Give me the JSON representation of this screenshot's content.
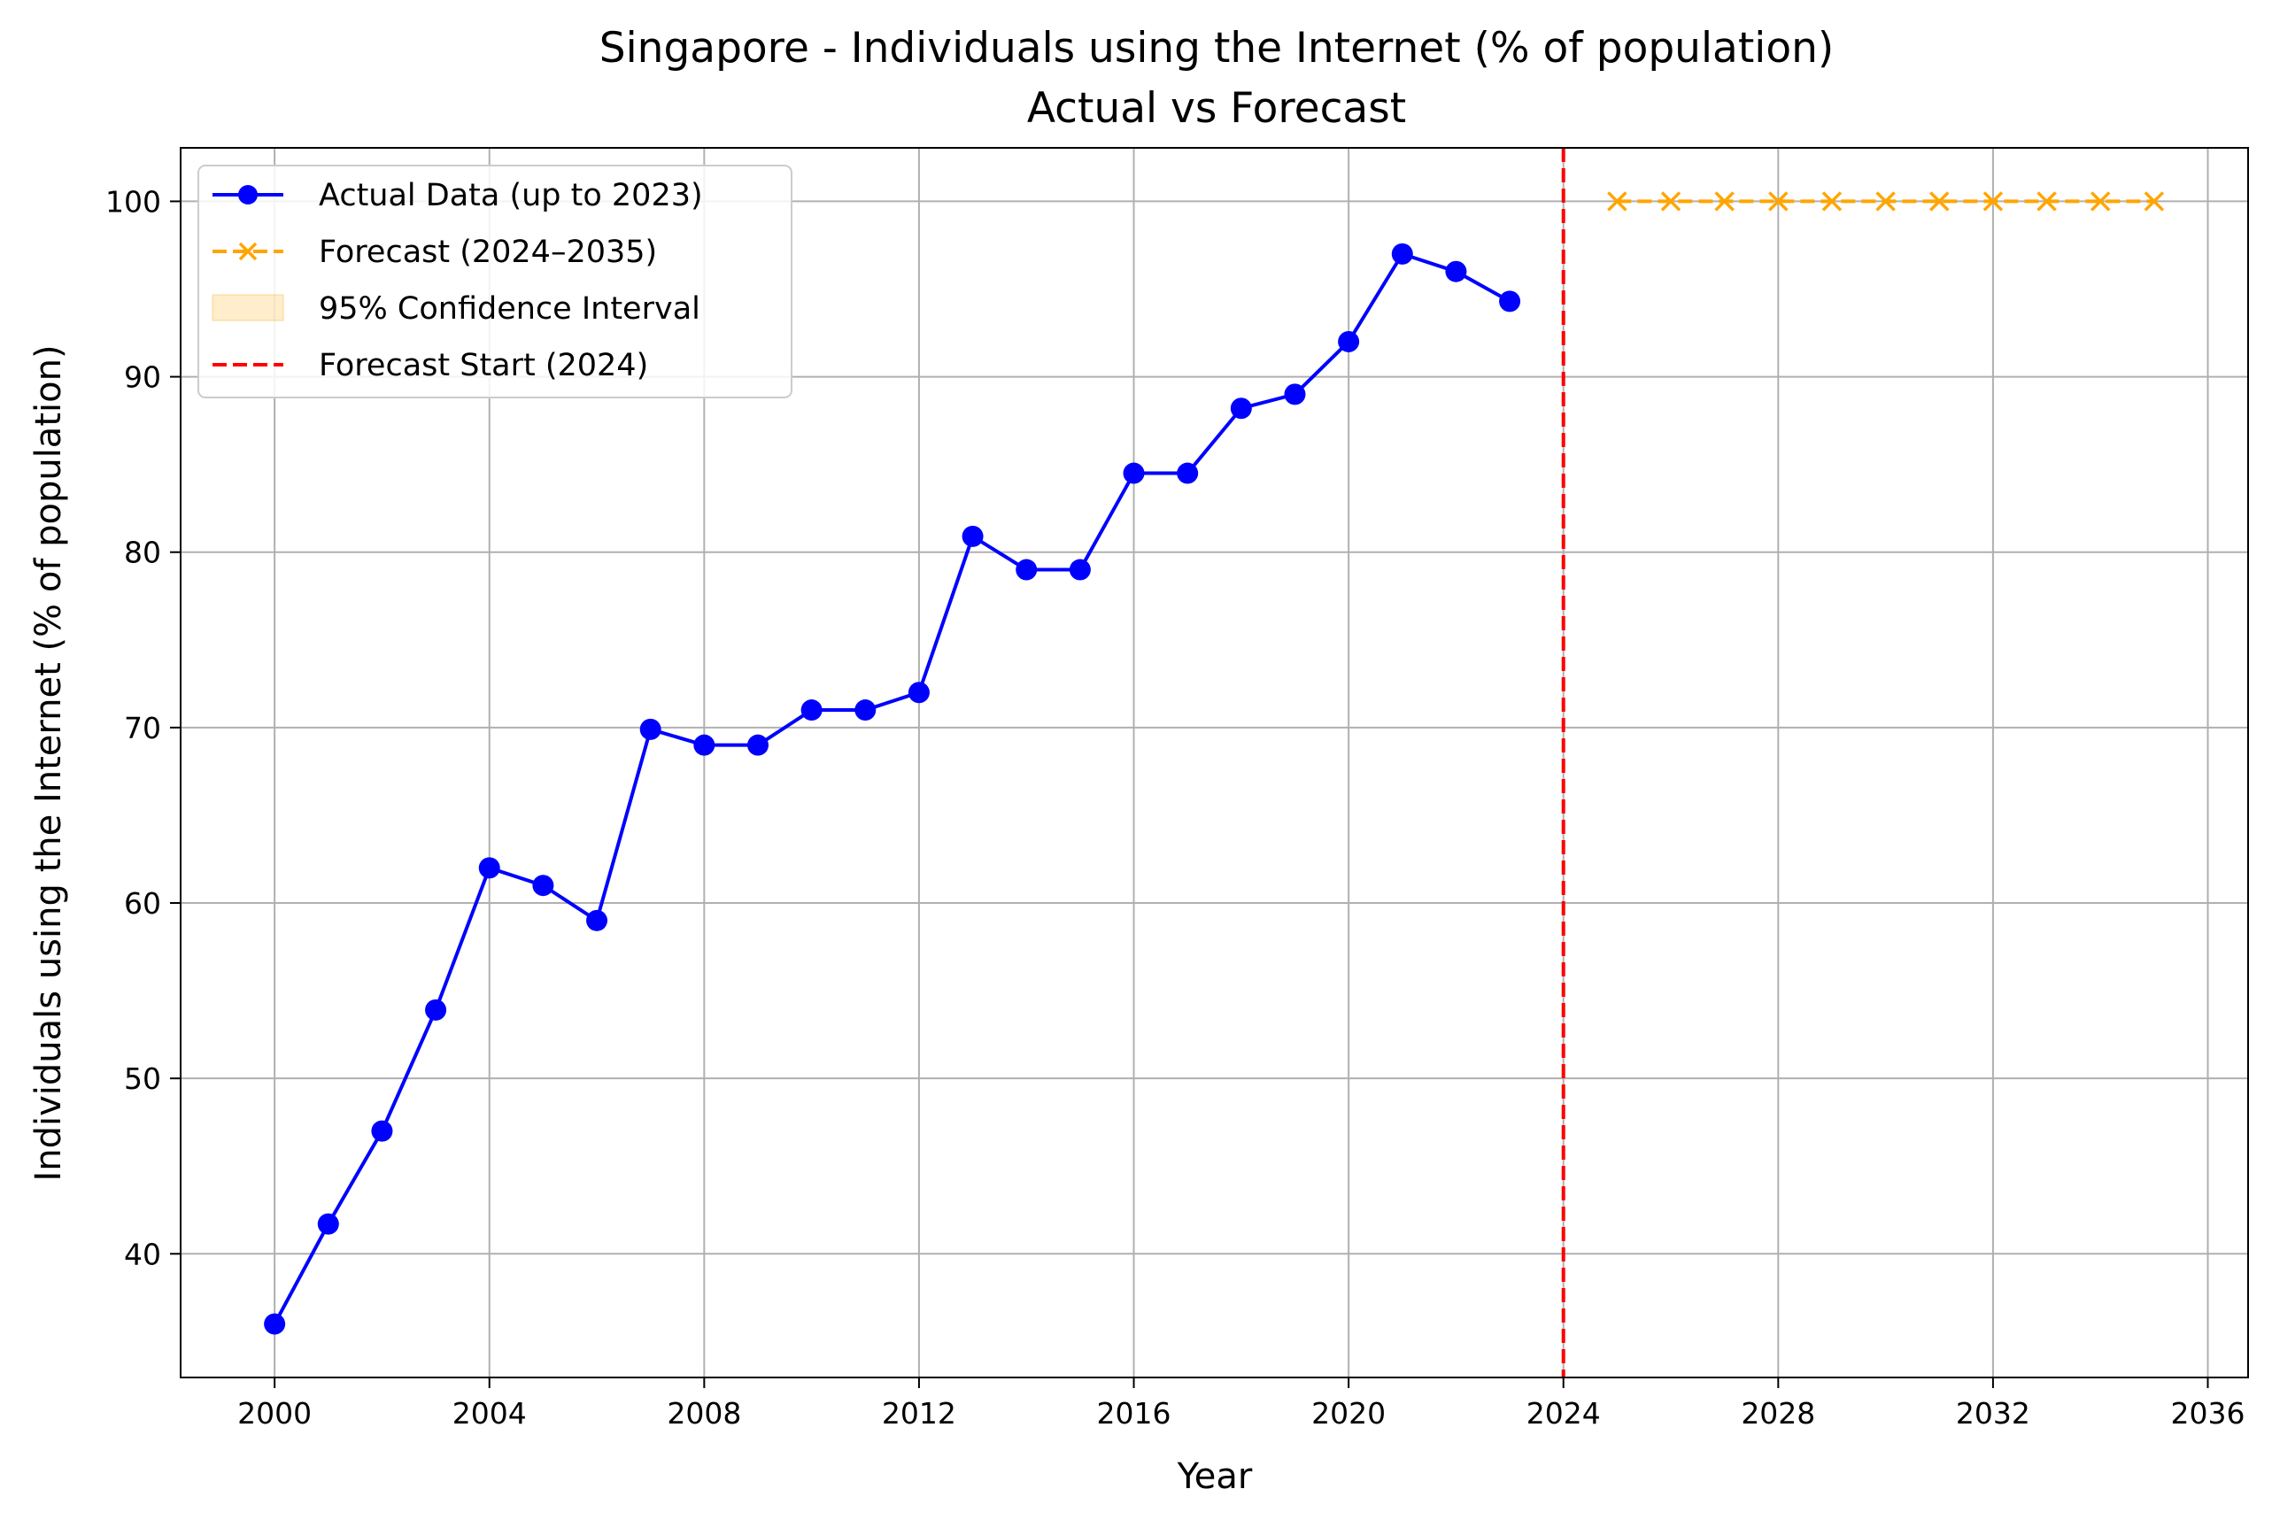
{
  "chart_data": {
    "type": "line",
    "title": "Singapore - Individuals using the Internet (% of population)",
    "subtitle": "Actual vs Forecast",
    "xlabel": "Year",
    "ylabel": "Individuals using the Internet (% of population)",
    "xlim": [
      1998.25,
      2036.75
    ],
    "ylim": [
      32.95,
      103.05
    ],
    "x_ticks": [
      2000,
      2004,
      2008,
      2012,
      2016,
      2020,
      2024,
      2028,
      2032,
      2036
    ],
    "y_ticks": [
      40,
      50,
      60,
      70,
      80,
      90,
      100
    ],
    "grid": true,
    "legend_position": "top-left",
    "series": [
      {
        "name": "Actual Data (up to 2023)",
        "color": "#0000ff",
        "marker": "circle",
        "line_style": "solid",
        "x": [
          2000,
          2001,
          2002,
          2003,
          2004,
          2005,
          2006,
          2007,
          2008,
          2009,
          2010,
          2011,
          2012,
          2013,
          2014,
          2015,
          2016,
          2017,
          2018,
          2019,
          2020,
          2021,
          2022,
          2023
        ],
        "y": [
          36,
          41.7,
          47,
          53.9,
          62,
          61,
          59,
          69.9,
          69,
          69,
          71,
          71,
          72,
          80.9,
          79,
          79,
          84.5,
          84.5,
          88.2,
          89,
          92,
          97,
          96,
          94.3
        ]
      },
      {
        "name": "Forecast (2024–2035)",
        "color": "#ffa500",
        "marker": "x",
        "line_style": "dashed",
        "x": [
          2025,
          2026,
          2027,
          2028,
          2029,
          2030,
          2031,
          2032,
          2033,
          2034,
          2035
        ],
        "y": [
          100,
          100,
          100,
          100,
          100,
          100,
          100,
          100,
          100,
          100,
          100
        ]
      }
    ],
    "confidence_interval": {
      "name": "95% Confidence Interval",
      "color": "#ffa500"
    },
    "vline": {
      "name": "Forecast Start (2024)",
      "x": 2024,
      "color": "#ff0000",
      "line_style": "dashed"
    }
  }
}
